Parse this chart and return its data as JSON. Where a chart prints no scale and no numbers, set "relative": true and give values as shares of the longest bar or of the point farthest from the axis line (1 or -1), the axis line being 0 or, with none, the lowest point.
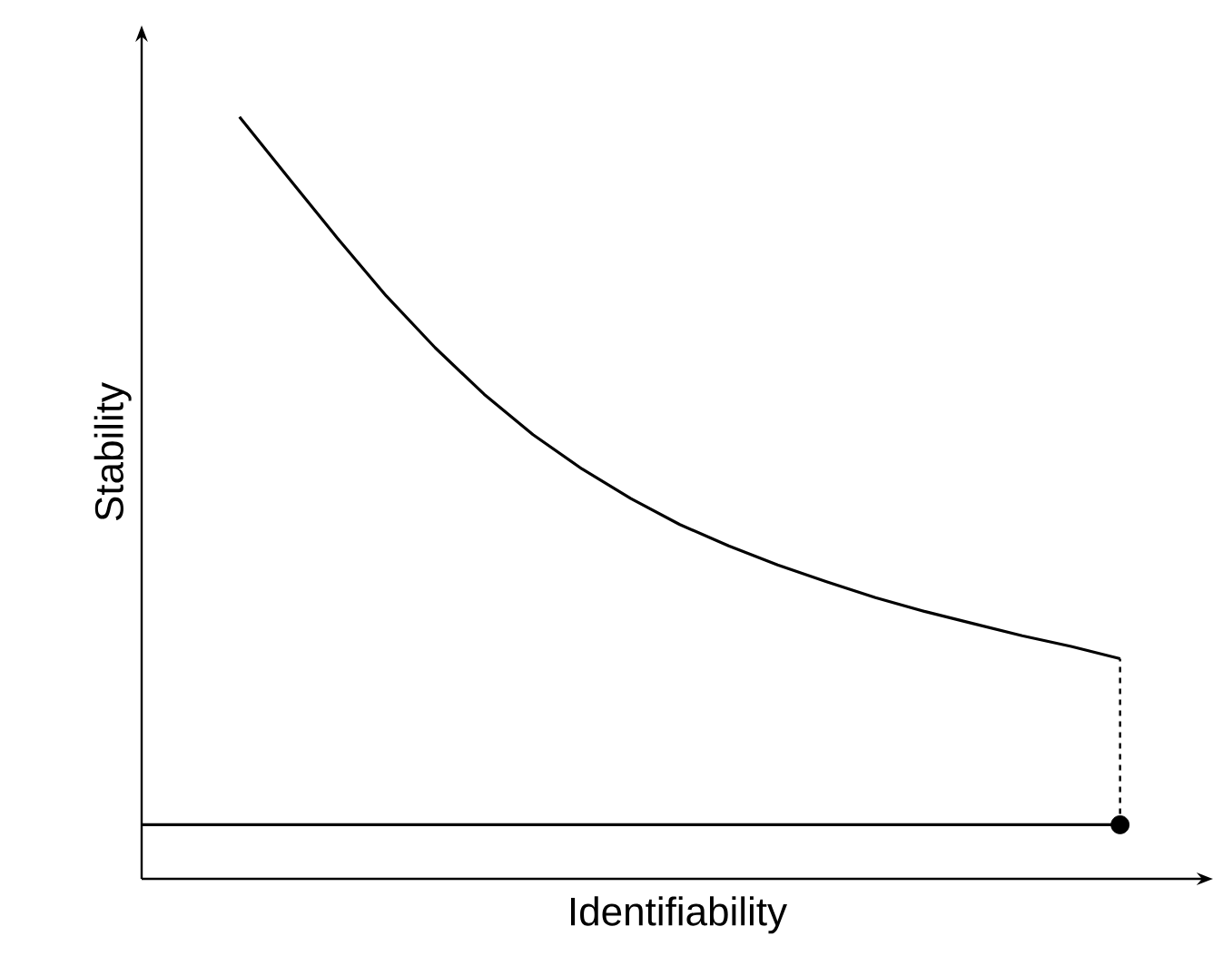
{
  "chart_data": {
    "type": "line",
    "xlabel": "Identifiability",
    "ylabel": "Stability",
    "relative": true,
    "tick_labels": false,
    "categories": [
      null,
      null,
      null,
      null,
      null,
      null,
      null,
      null,
      null,
      null,
      null,
      null,
      null,
      null,
      null,
      null,
      null,
      null,
      null,
      null,
      null
    ],
    "series": [
      {
        "type": "line",
        "color": "#000000",
        "line_style": "solid",
        "values": [
          null,
          null,
          1.0,
          0.92,
          0.841,
          0.765,
          0.697,
          0.636,
          0.583,
          0.538,
          0.499,
          0.465,
          0.437,
          0.412,
          0.39,
          0.369,
          0.351,
          0.335,
          0.319,
          0.305,
          0.289
        ]
      },
      {
        "type": "line",
        "color": "#000000",
        "line_style": "solid",
        "values": [
          0.071,
          0.071,
          0.071,
          0.071,
          0.071,
          0.071,
          0.071,
          0.071,
          0.071,
          0.071,
          0.071,
          0.071,
          0.071,
          0.071,
          0.071,
          0.071,
          0.071,
          0.071,
          0.071,
          0.071,
          0.071
        ]
      },
      {
        "type": "line",
        "color": "#000000",
        "marker": "circle",
        "line_style": "dashed",
        "values": [
          null,
          null,
          null,
          null,
          null,
          null,
          null,
          null,
          null,
          null,
          null,
          null,
          null,
          null,
          null,
          null,
          null,
          null,
          null,
          null,
          0.071
        ]
      }
    ]
  }
}
